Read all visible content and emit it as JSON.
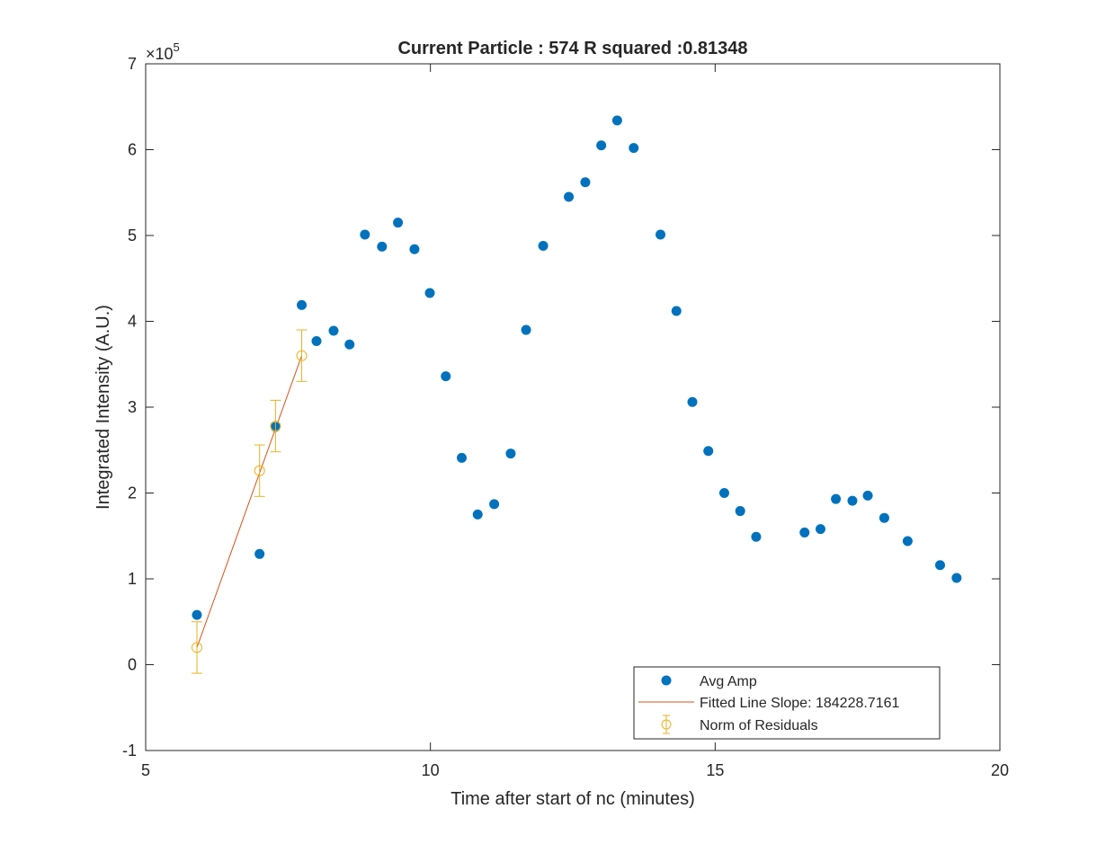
{
  "chart_data": {
    "type": "scatter",
    "title": "Current Particle : 574   R squared :0.81348",
    "xlabel": "Time after start of nc (minutes)",
    "ylabel": "Integrated Intensity (A.U.)",
    "y_exponent_label": "×10",
    "y_exponent_power": "5",
    "xlim": [
      5,
      20
    ],
    "ylim": [
      -1,
      7
    ],
    "x_ticks": [
      5,
      10,
      15,
      20
    ],
    "x_tick_labels": [
      "5",
      "10",
      "15",
      "20"
    ],
    "y_ticks": [
      -1,
      0,
      1,
      2,
      3,
      4,
      5,
      6,
      7
    ],
    "y_tick_labels": [
      "-1",
      "0",
      "1",
      "2",
      "3",
      "4",
      "5",
      "6",
      "7"
    ],
    "grid": false,
    "legend_position": "bottom-right",
    "series": [
      {
        "name": "Avg Amp",
        "kind": "scatter",
        "color": "#0072BD",
        "x": [
          5.9,
          7.0,
          7.28,
          7.74,
          8.0,
          8.3,
          8.58,
          8.85,
          9.15,
          9.43,
          9.72,
          9.99,
          10.27,
          10.55,
          10.83,
          11.12,
          11.41,
          11.68,
          11.98,
          12.43,
          12.72,
          13.0,
          13.28,
          13.57,
          14.04,
          14.32,
          14.6,
          14.88,
          15.16,
          15.44,
          15.72,
          16.57,
          16.85,
          17.12,
          17.41,
          17.68,
          17.97,
          18.38,
          18.95,
          19.24
        ],
        "y": [
          0.58,
          1.29,
          2.77,
          4.19,
          3.77,
          3.89,
          3.73,
          5.01,
          4.87,
          5.15,
          4.84,
          4.33,
          3.36,
          2.41,
          1.75,
          1.87,
          2.46,
          3.9,
          4.88,
          5.45,
          5.62,
          6.05,
          6.34,
          6.02,
          5.01,
          4.12,
          3.06,
          2.49,
          2.0,
          1.79,
          1.49,
          1.54,
          1.58,
          1.93,
          1.91,
          1.97,
          1.71,
          1.44,
          1.16,
          1.01
        ]
      },
      {
        "name": "Fitted Line Slope: 184228.7161",
        "kind": "line",
        "color": "#D95319",
        "x": [
          5.9,
          7.74
        ],
        "y": [
          0.2,
          3.6
        ]
      },
      {
        "name": "Norm of Residuals",
        "kind": "errorbar",
        "color": "#EDB120",
        "x": [
          5.9,
          7.0,
          7.28,
          7.74
        ],
        "y": [
          0.2,
          2.26,
          2.78,
          3.6
        ],
        "err": [
          0.3,
          0.3,
          0.3,
          0.3
        ]
      }
    ]
  }
}
